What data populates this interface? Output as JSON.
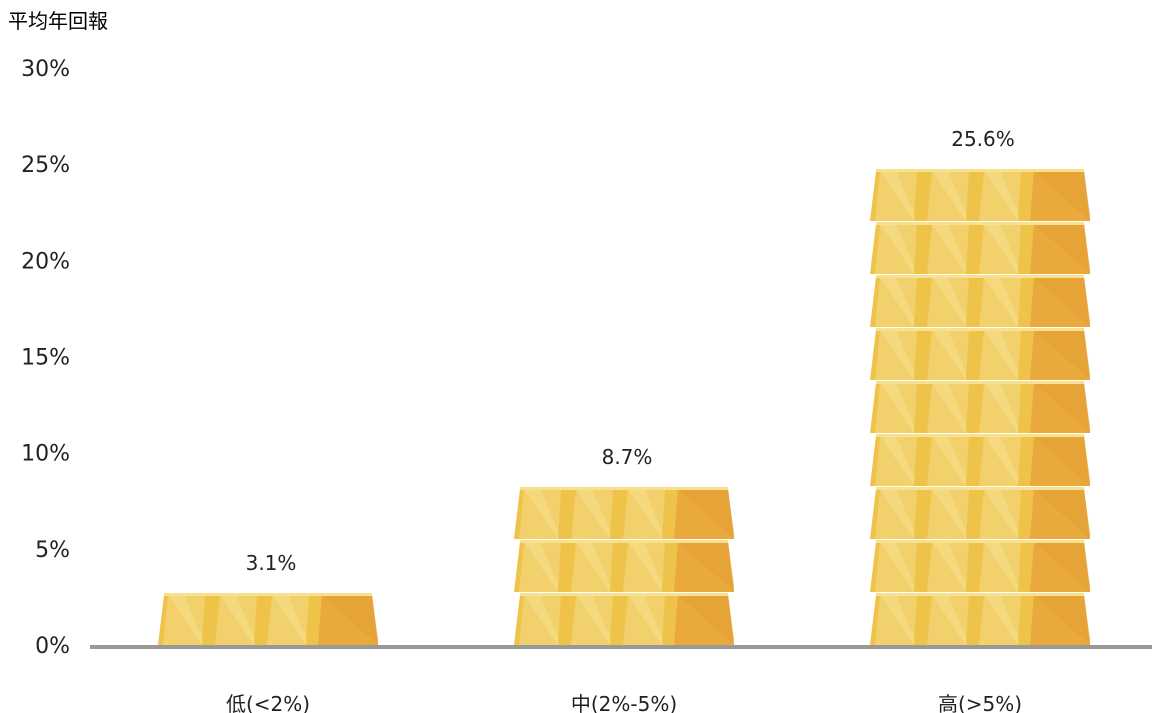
{
  "chart_data": {
    "type": "bar",
    "ylabel": "平均年回報",
    "categories": [
      "低(<2%)",
      "中(2%-5%)",
      "高(>5%)"
    ],
    "values": [
      3.1,
      8.7,
      25.6
    ],
    "value_labels": [
      "3.1%",
      "8.7%",
      "25.6%"
    ],
    "bars_stacked": [
      1,
      3,
      9
    ],
    "ylim": [
      0,
      30
    ],
    "yticks": [
      0,
      5,
      10,
      15,
      20,
      25,
      30
    ],
    "ytick_labels": [
      "0%",
      "5%",
      "10%",
      "15%",
      "20%",
      "25%",
      "30%"
    ],
    "grid": false,
    "legend": "none",
    "colors": {
      "gold_light": "#F2D06B",
      "gold_mid": "#EFC24A",
      "gold_dark": "#E9A93C",
      "gold_highlight": "#F7E08E",
      "axis": "#999999"
    }
  }
}
